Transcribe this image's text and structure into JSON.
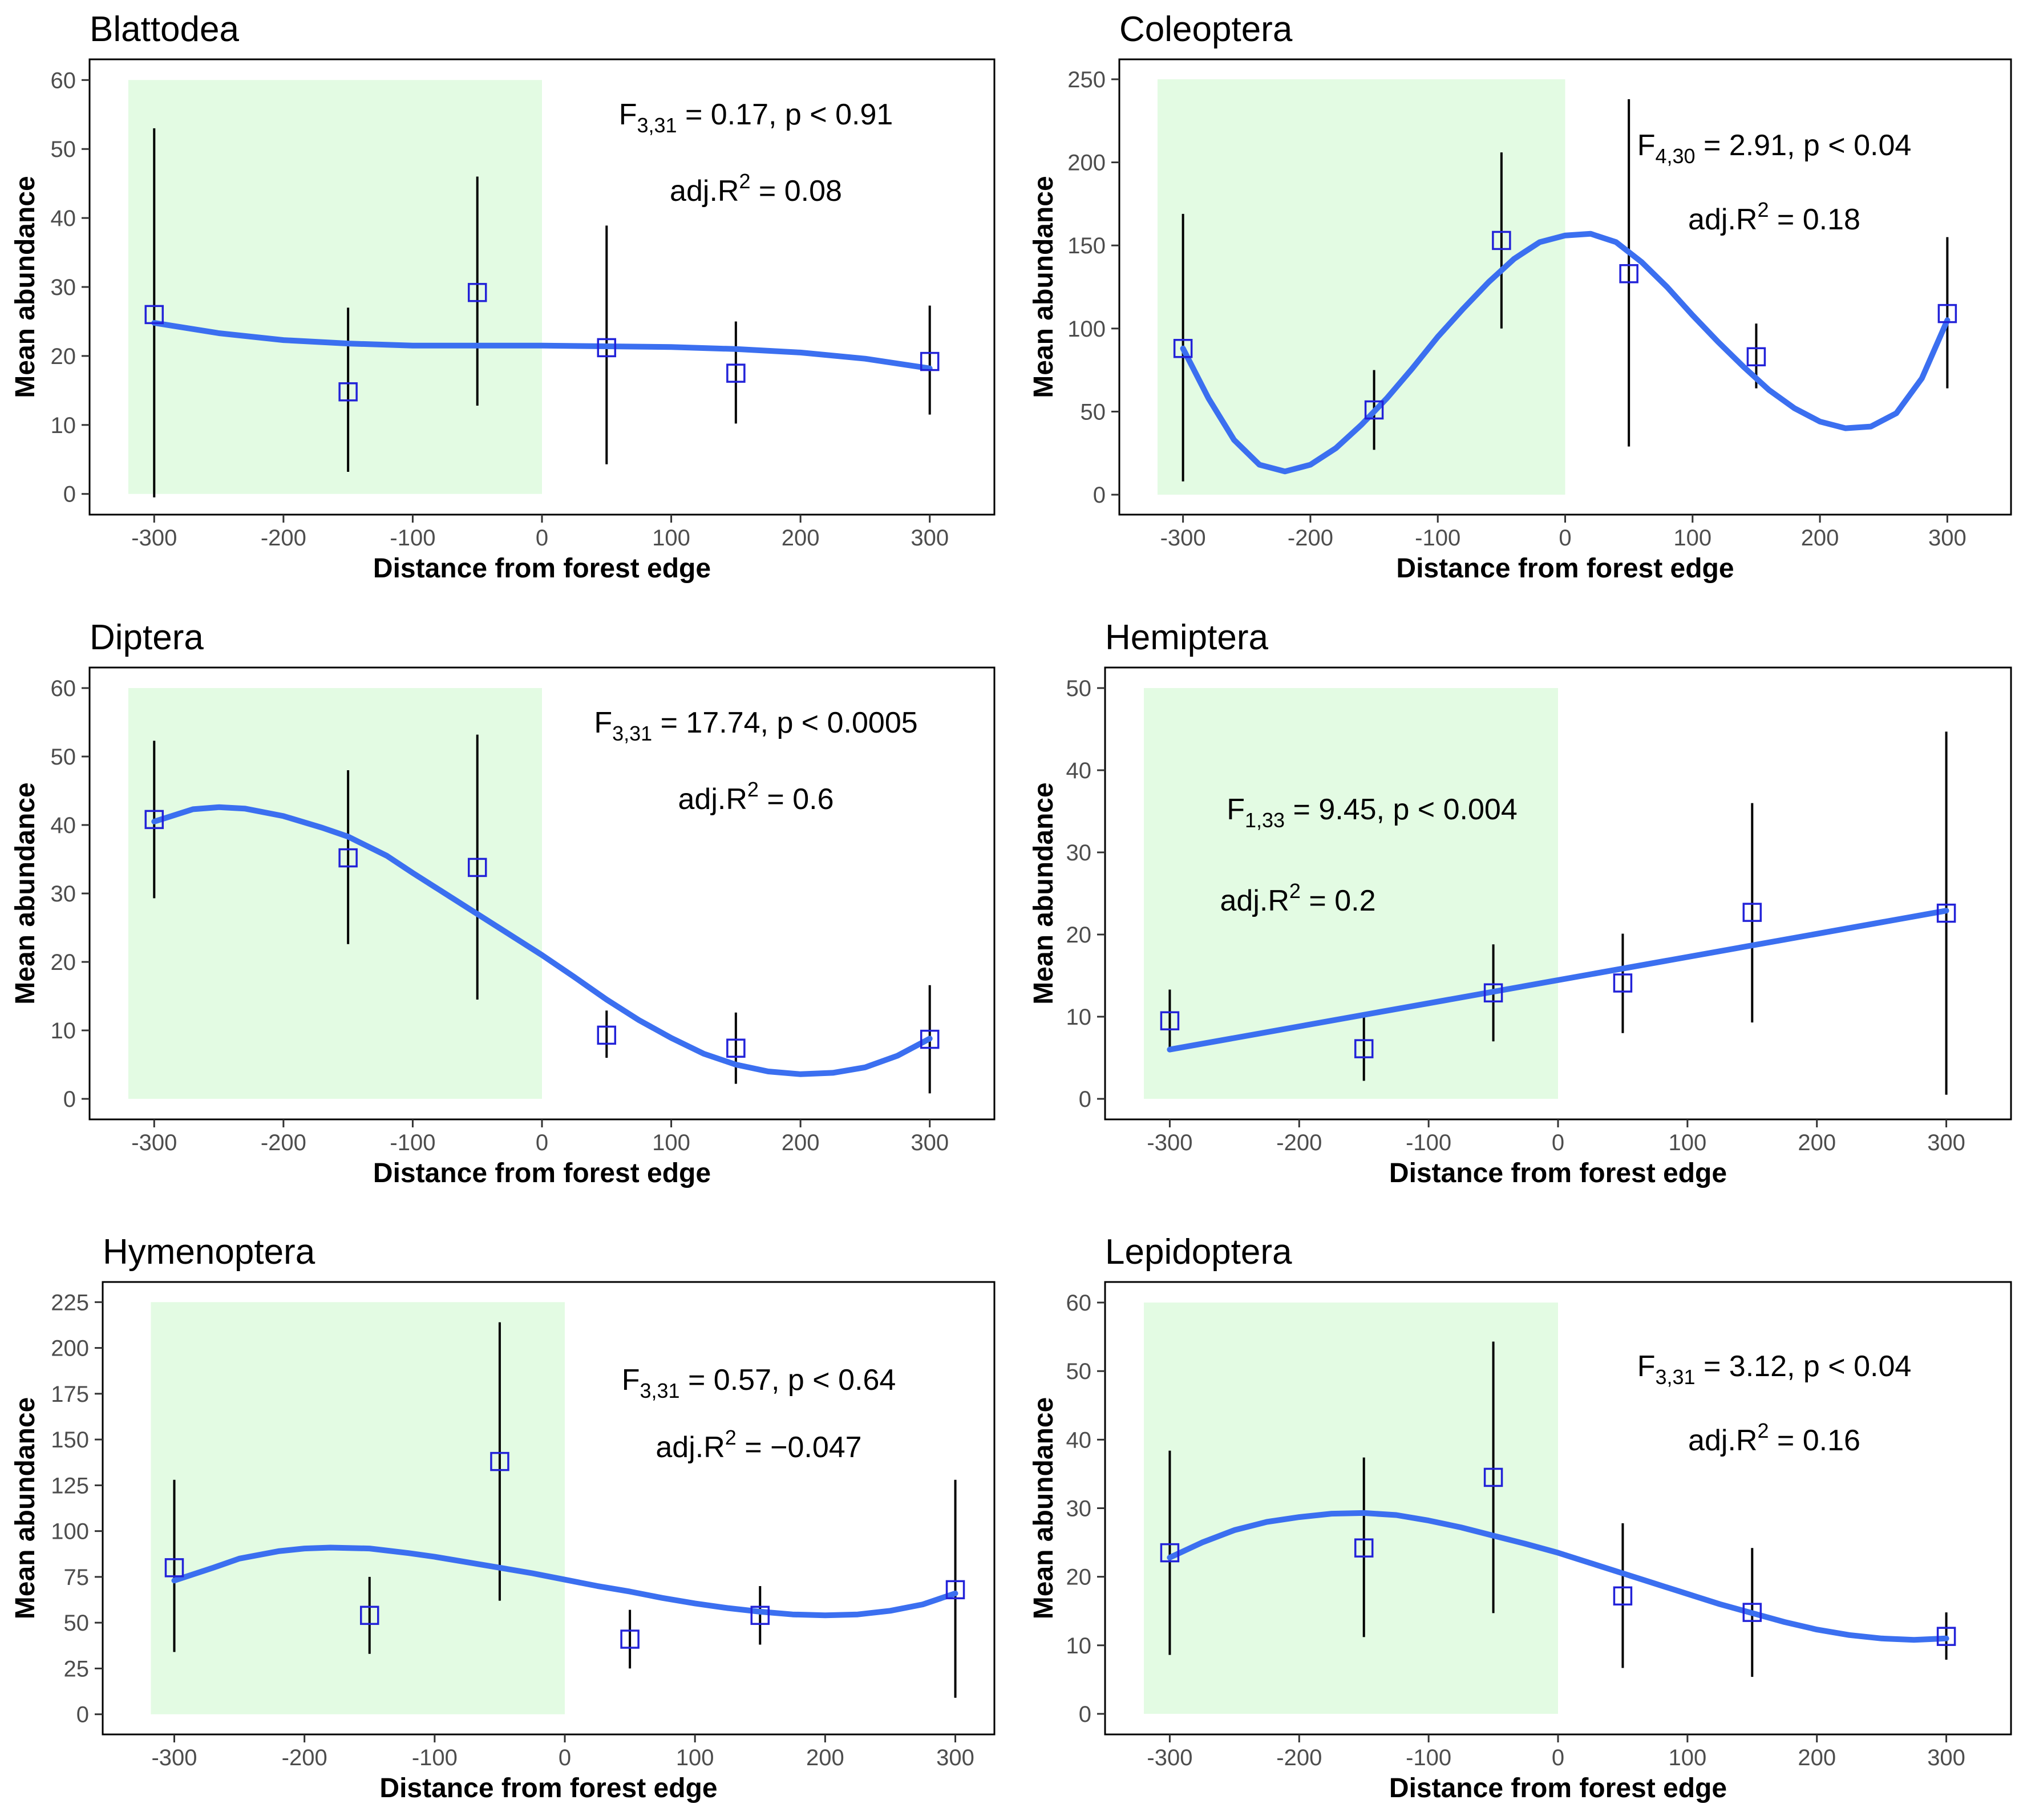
{
  "chart_data": [
    {
      "type": "scatter",
      "title": "Blattodea",
      "xlabel": "Distance from forest edge",
      "ylabel": "Mean abundance",
      "xlim": [
        -350,
        350
      ],
      "ylim": [
        -3,
        63
      ],
      "xticks": [
        "-300",
        "-200",
        "-100",
        "0",
        "100",
        "200",
        "300"
      ],
      "yticks": [
        "0",
        "10",
        "20",
        "30",
        "40",
        "50",
        "60"
      ],
      "forest_region": [
        -320,
        0
      ],
      "forest_ymax": 60,
      "points": [
        {
          "x": -300,
          "y": 26,
          "lo": -0.5,
          "hi": 53
        },
        {
          "x": -150,
          "y": 14.8,
          "lo": 3.2,
          "hi": 27
        },
        {
          "x": -50,
          "y": 29.2,
          "lo": 12.8,
          "hi": 46
        },
        {
          "x": 50,
          "y": 21.2,
          "lo": 4.3,
          "hi": 38.9
        },
        {
          "x": 150,
          "y": 17.5,
          "lo": 10.2,
          "hi": 25
        },
        {
          "x": 300,
          "y": 19.2,
          "lo": 11.5,
          "hi": 27.3
        }
      ],
      "fit": [
        [
          -300,
          24.8
        ],
        [
          -250,
          23.3
        ],
        [
          -200,
          22.3
        ],
        [
          -150,
          21.8
        ],
        [
          -100,
          21.5
        ],
        [
          -50,
          21.5
        ],
        [
          0,
          21.5
        ],
        [
          50,
          21.4
        ],
        [
          100,
          21.3
        ],
        [
          150,
          21
        ],
        [
          200,
          20.5
        ],
        [
          250,
          19.6
        ],
        [
          300,
          18.2
        ]
      ],
      "stat": {
        "f_main": "F",
        "f_sub": "3,31",
        "f_rest": " = 0.17, p < 0.91",
        "r_main": "adj.R",
        "r_sup": "2",
        "r_rest": " = 0.08"
      }
    },
    {
      "type": "scatter",
      "title": "Coleoptera",
      "xlabel": "Distance from forest edge",
      "ylabel": "Mean abundance",
      "xlim": [
        -350,
        350
      ],
      "ylim": [
        -12,
        262
      ],
      "xticks": [
        "-300",
        "-200",
        "-100",
        "0",
        "100",
        "200",
        "300"
      ],
      "yticks": [
        "0",
        "50",
        "100",
        "150",
        "200",
        "250"
      ],
      "forest_region": [
        -320,
        0
      ],
      "forest_ymax": 250,
      "points": [
        {
          "x": -300,
          "y": 88,
          "lo": 8,
          "hi": 169
        },
        {
          "x": -150,
          "y": 51,
          "lo": 27,
          "hi": 75
        },
        {
          "x": -50,
          "y": 153,
          "lo": 100,
          "hi": 206
        },
        {
          "x": 50,
          "y": 133,
          "lo": 29,
          "hi": 238
        },
        {
          "x": 150,
          "y": 83,
          "lo": 64,
          "hi": 103
        },
        {
          "x": 300,
          "y": 109,
          "lo": 64,
          "hi": 155
        }
      ],
      "fit": [
        [
          -300,
          88
        ],
        [
          -280,
          58
        ],
        [
          -260,
          33
        ],
        [
          -240,
          18
        ],
        [
          -220,
          14
        ],
        [
          -200,
          18
        ],
        [
          -180,
          28
        ],
        [
          -160,
          42
        ],
        [
          -140,
          58
        ],
        [
          -120,
          76
        ],
        [
          -100,
          95
        ],
        [
          -80,
          112
        ],
        [
          -60,
          128
        ],
        [
          -40,
          142
        ],
        [
          -20,
          152
        ],
        [
          0,
          156
        ],
        [
          20,
          157
        ],
        [
          40,
          152
        ],
        [
          60,
          140
        ],
        [
          80,
          125
        ],
        [
          100,
          108
        ],
        [
          120,
          92
        ],
        [
          140,
          77
        ],
        [
          160,
          63
        ],
        [
          180,
          52
        ],
        [
          200,
          44
        ],
        [
          220,
          40
        ],
        [
          240,
          41
        ],
        [
          260,
          49
        ],
        [
          280,
          70
        ],
        [
          300,
          105
        ]
      ],
      "stat": {
        "f_main": "F",
        "f_sub": "4,30",
        "f_rest": " = 2.91, p < 0.04",
        "r_main": "adj.R",
        "r_sup": "2",
        "r_rest": " = 0.18"
      }
    },
    {
      "type": "scatter",
      "title": "Diptera",
      "xlabel": "Distance from forest edge",
      "ylabel": "Mean abundance",
      "xlim": [
        -350,
        350
      ],
      "ylim": [
        -3,
        63
      ],
      "xticks": [
        "-300",
        "-200",
        "-100",
        "0",
        "100",
        "200",
        "300"
      ],
      "yticks": [
        "0",
        "10",
        "20",
        "30",
        "40",
        "50",
        "60"
      ],
      "forest_region": [
        -320,
        0
      ],
      "forest_ymax": 60,
      "points": [
        {
          "x": -300,
          "y": 40.8,
          "lo": 29.3,
          "hi": 52.3
        },
        {
          "x": -150,
          "y": 35.2,
          "lo": 22.6,
          "hi": 48
        },
        {
          "x": -50,
          "y": 33.8,
          "lo": 14.5,
          "hi": 53.2
        },
        {
          "x": 50,
          "y": 9.3,
          "lo": 6,
          "hi": 12.9
        },
        {
          "x": 150,
          "y": 7.4,
          "lo": 2.2,
          "hi": 12.6
        },
        {
          "x": 300,
          "y": 8.7,
          "lo": 0.8,
          "hi": 16.6
        }
      ],
      "fit": [
        [
          -300,
          40.5
        ],
        [
          -270,
          42.3
        ],
        [
          -250,
          42.6
        ],
        [
          -230,
          42.4
        ],
        [
          -200,
          41.3
        ],
        [
          -170,
          39.6
        ],
        [
          -150,
          38.3
        ],
        [
          -120,
          35.5
        ],
        [
          -100,
          33
        ],
        [
          -75,
          30
        ],
        [
          -50,
          27
        ],
        [
          -25,
          24
        ],
        [
          0,
          21
        ],
        [
          25,
          17.8
        ],
        [
          50,
          14.5
        ],
        [
          75,
          11.5
        ],
        [
          100,
          8.9
        ],
        [
          125,
          6.6
        ],
        [
          150,
          5
        ],
        [
          175,
          4
        ],
        [
          200,
          3.6
        ],
        [
          225,
          3.8
        ],
        [
          250,
          4.6
        ],
        [
          275,
          6.3
        ],
        [
          300,
          8.8
        ]
      ],
      "stat": {
        "f_main": "F",
        "f_sub": "3,31",
        "f_rest": " = 17.74, p < 0.0005",
        "r_main": "adj.R",
        "r_sup": "2",
        "r_rest": " = 0.6"
      }
    },
    {
      "type": "scatter",
      "title": "Hemiptera",
      "xlabel": "Distance from forest edge",
      "ylabel": "Mean abundance",
      "xlim": [
        -350,
        350
      ],
      "ylim": [
        -2.5,
        52.5
      ],
      "xticks": [
        "-300",
        "-200",
        "-100",
        "0",
        "100",
        "200",
        "300"
      ],
      "yticks": [
        "0",
        "10",
        "20",
        "30",
        "40",
        "50"
      ],
      "forest_region": [
        -320,
        0
      ],
      "forest_ymax": 50,
      "points": [
        {
          "x": -300,
          "y": 9.5,
          "lo": 5.8,
          "hi": 13.3
        },
        {
          "x": -150,
          "y": 6.1,
          "lo": 2.2,
          "hi": 10
        },
        {
          "x": -50,
          "y": 12.9,
          "lo": 7,
          "hi": 18.8
        },
        {
          "x": 50,
          "y": 14.1,
          "lo": 8,
          "hi": 20.1
        },
        {
          "x": 150,
          "y": 22.7,
          "lo": 9.3,
          "hi": 36
        },
        {
          "x": 300,
          "y": 22.6,
          "lo": 0.5,
          "hi": 44.7
        }
      ],
      "fit": [
        [
          -300,
          6
        ],
        [
          300,
          22.9
        ]
      ],
      "stat": {
        "f_main": "F",
        "f_sub": "1,33",
        "f_rest": " = 9.45, p < 0.004",
        "r_main": "adj.R",
        "r_sup": "2",
        "r_rest": " = 0.2"
      }
    },
    {
      "type": "scatter",
      "title": "Hymenoptera",
      "xlabel": "Distance from forest edge",
      "ylabel": "Mean abundance",
      "xlim": [
        -355,
        330
      ],
      "ylim": [
        -11,
        236
      ],
      "xticks": [
        "-300",
        "-200",
        "-100",
        "0",
        "100",
        "200",
        "300"
      ],
      "yticks": [
        "0",
        "25",
        "50",
        "75",
        "100",
        "125",
        "150",
        "175",
        "200",
        "225"
      ],
      "forest_region": [
        -318,
        0
      ],
      "forest_ymax": 225,
      "points": [
        {
          "x": -300,
          "y": 80,
          "lo": 34,
          "hi": 128
        },
        {
          "x": -150,
          "y": 54,
          "lo": 33,
          "hi": 75
        },
        {
          "x": -50,
          "y": 138,
          "lo": 62,
          "hi": 214
        },
        {
          "x": 50,
          "y": 41,
          "lo": 25,
          "hi": 57
        },
        {
          "x": 150,
          "y": 54,
          "lo": 38,
          "hi": 70
        },
        {
          "x": 300,
          "y": 68,
          "lo": 9,
          "hi": 128
        }
      ],
      "fit": [
        [
          -300,
          73
        ],
        [
          -270,
          80
        ],
        [
          -250,
          85
        ],
        [
          -220,
          89
        ],
        [
          -200,
          90.5
        ],
        [
          -180,
          91
        ],
        [
          -150,
          90.5
        ],
        [
          -120,
          88
        ],
        [
          -100,
          86
        ],
        [
          -75,
          83
        ],
        [
          -50,
          80
        ],
        [
          -25,
          77
        ],
        [
          0,
          73.5
        ],
        [
          25,
          70
        ],
        [
          50,
          67
        ],
        [
          75,
          63.5
        ],
        [
          100,
          60.5
        ],
        [
          125,
          58
        ],
        [
          150,
          56
        ],
        [
          175,
          54.5
        ],
        [
          200,
          54
        ],
        [
          225,
          54.5
        ],
        [
          250,
          56.5
        ],
        [
          275,
          60
        ],
        [
          300,
          66
        ]
      ],
      "stat": {
        "f_main": "F",
        "f_sub": "3,31",
        "f_rest": " = 0.57, p < 0.64",
        "r_main": "adj.R",
        "r_sup": "2",
        "r_rest": " = −0.047"
      }
    },
    {
      "type": "scatter",
      "title": "Lepidoptera",
      "xlabel": "Distance from forest edge",
      "ylabel": "Mean abundance",
      "xlim": [
        -350,
        350
      ],
      "ylim": [
        -3,
        63
      ],
      "xticks": [
        "-300",
        "-200",
        "-100",
        "0",
        "100",
        "200",
        "300"
      ],
      "yticks": [
        "0",
        "10",
        "20",
        "30",
        "40",
        "50",
        "60"
      ],
      "forest_region": [
        -320,
        0
      ],
      "forest_ymax": 60,
      "points": [
        {
          "x": -300,
          "y": 23.5,
          "lo": 8.6,
          "hi": 38.4
        },
        {
          "x": -150,
          "y": 24.2,
          "lo": 11.2,
          "hi": 37.4
        },
        {
          "x": -50,
          "y": 34.5,
          "lo": 14.7,
          "hi": 54.3
        },
        {
          "x": 50,
          "y": 17.2,
          "lo": 6.7,
          "hi": 27.8
        },
        {
          "x": 150,
          "y": 14.8,
          "lo": 5.4,
          "hi": 24.2
        },
        {
          "x": 300,
          "y": 11.3,
          "lo": 7.9,
          "hi": 14.8
        }
      ],
      "fit": [
        [
          -300,
          22.8
        ],
        [
          -275,
          25
        ],
        [
          -250,
          26.8
        ],
        [
          -225,
          28
        ],
        [
          -200,
          28.7
        ],
        [
          -175,
          29.2
        ],
        [
          -150,
          29.3
        ],
        [
          -125,
          29
        ],
        [
          -100,
          28.2
        ],
        [
          -75,
          27.2
        ],
        [
          -50,
          26
        ],
        [
          -25,
          24.8
        ],
        [
          0,
          23.5
        ],
        [
          25,
          22
        ],
        [
          50,
          20.5
        ],
        [
          75,
          19
        ],
        [
          100,
          17.5
        ],
        [
          125,
          16
        ],
        [
          150,
          14.7
        ],
        [
          175,
          13.4
        ],
        [
          200,
          12.3
        ],
        [
          225,
          11.5
        ],
        [
          250,
          11
        ],
        [
          275,
          10.8
        ],
        [
          300,
          11
        ]
      ],
      "stat": {
        "f_main": "F",
        "f_sub": "3,31",
        "f_rest": " = 3.12, p < 0.04",
        "r_main": "adj.R",
        "r_sup": "2",
        "r_rest": " = 0.16"
      }
    }
  ],
  "colors": {
    "forest_fill": "#e3fbe3",
    "fit_line": "#3b6ff0",
    "marker_edge": "#2222d8",
    "error_bar": "#000000",
    "frame": "#000000"
  }
}
